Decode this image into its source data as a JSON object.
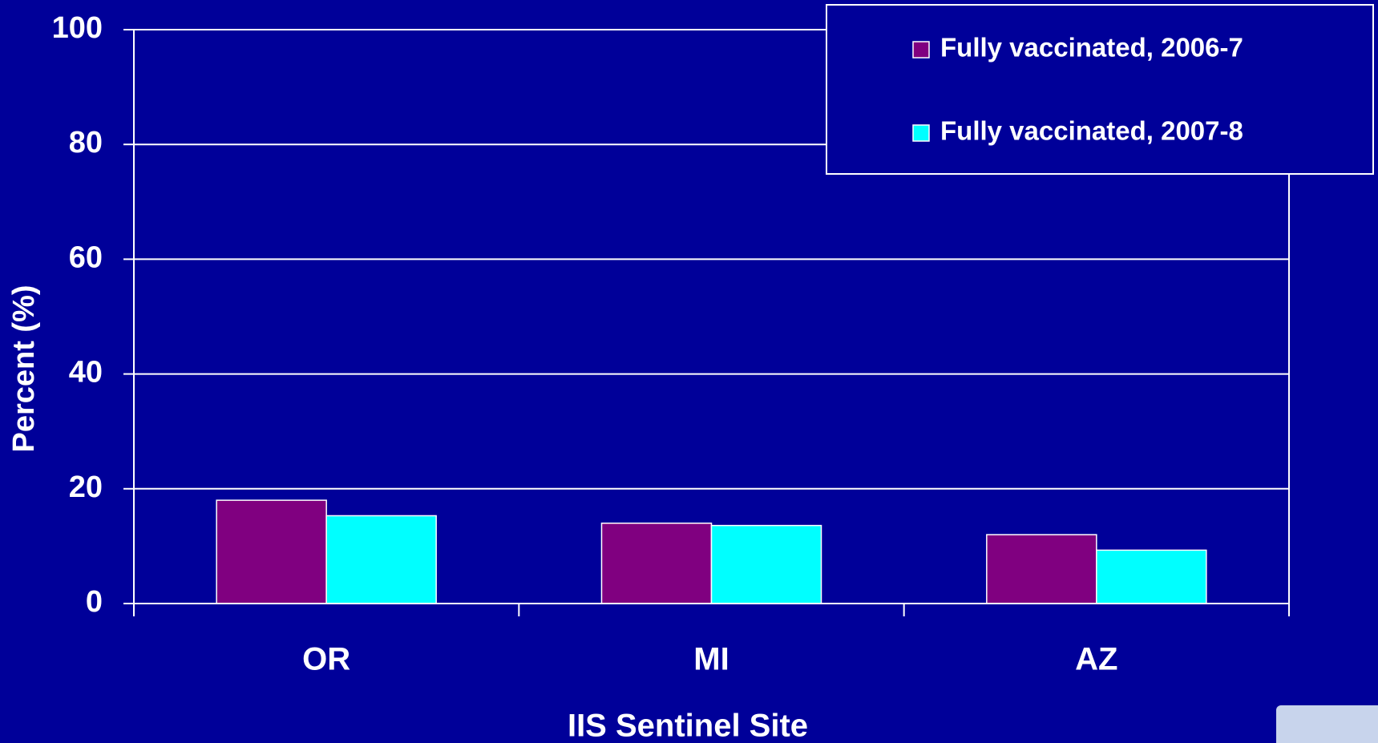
{
  "chart_data": {
    "type": "bar",
    "categories": [
      "OR",
      "MI",
      "AZ"
    ],
    "series": [
      {
        "name": "Fully vaccinated, 2006-7",
        "color": "#800080",
        "values": [
          18,
          14,
          12
        ]
      },
      {
        "name": "Fully vaccinated, 2007-8",
        "color": "#00ffff",
        "values": [
          15.3,
          13.6,
          9.3
        ]
      }
    ],
    "xlabel": "IIS Sentinel Site",
    "ylabel": "Percent (%)",
    "ylim": [
      0,
      100
    ],
    "yticks": [
      0,
      20,
      40,
      60,
      80,
      100
    ],
    "grid": true,
    "legend": "upper right"
  }
}
